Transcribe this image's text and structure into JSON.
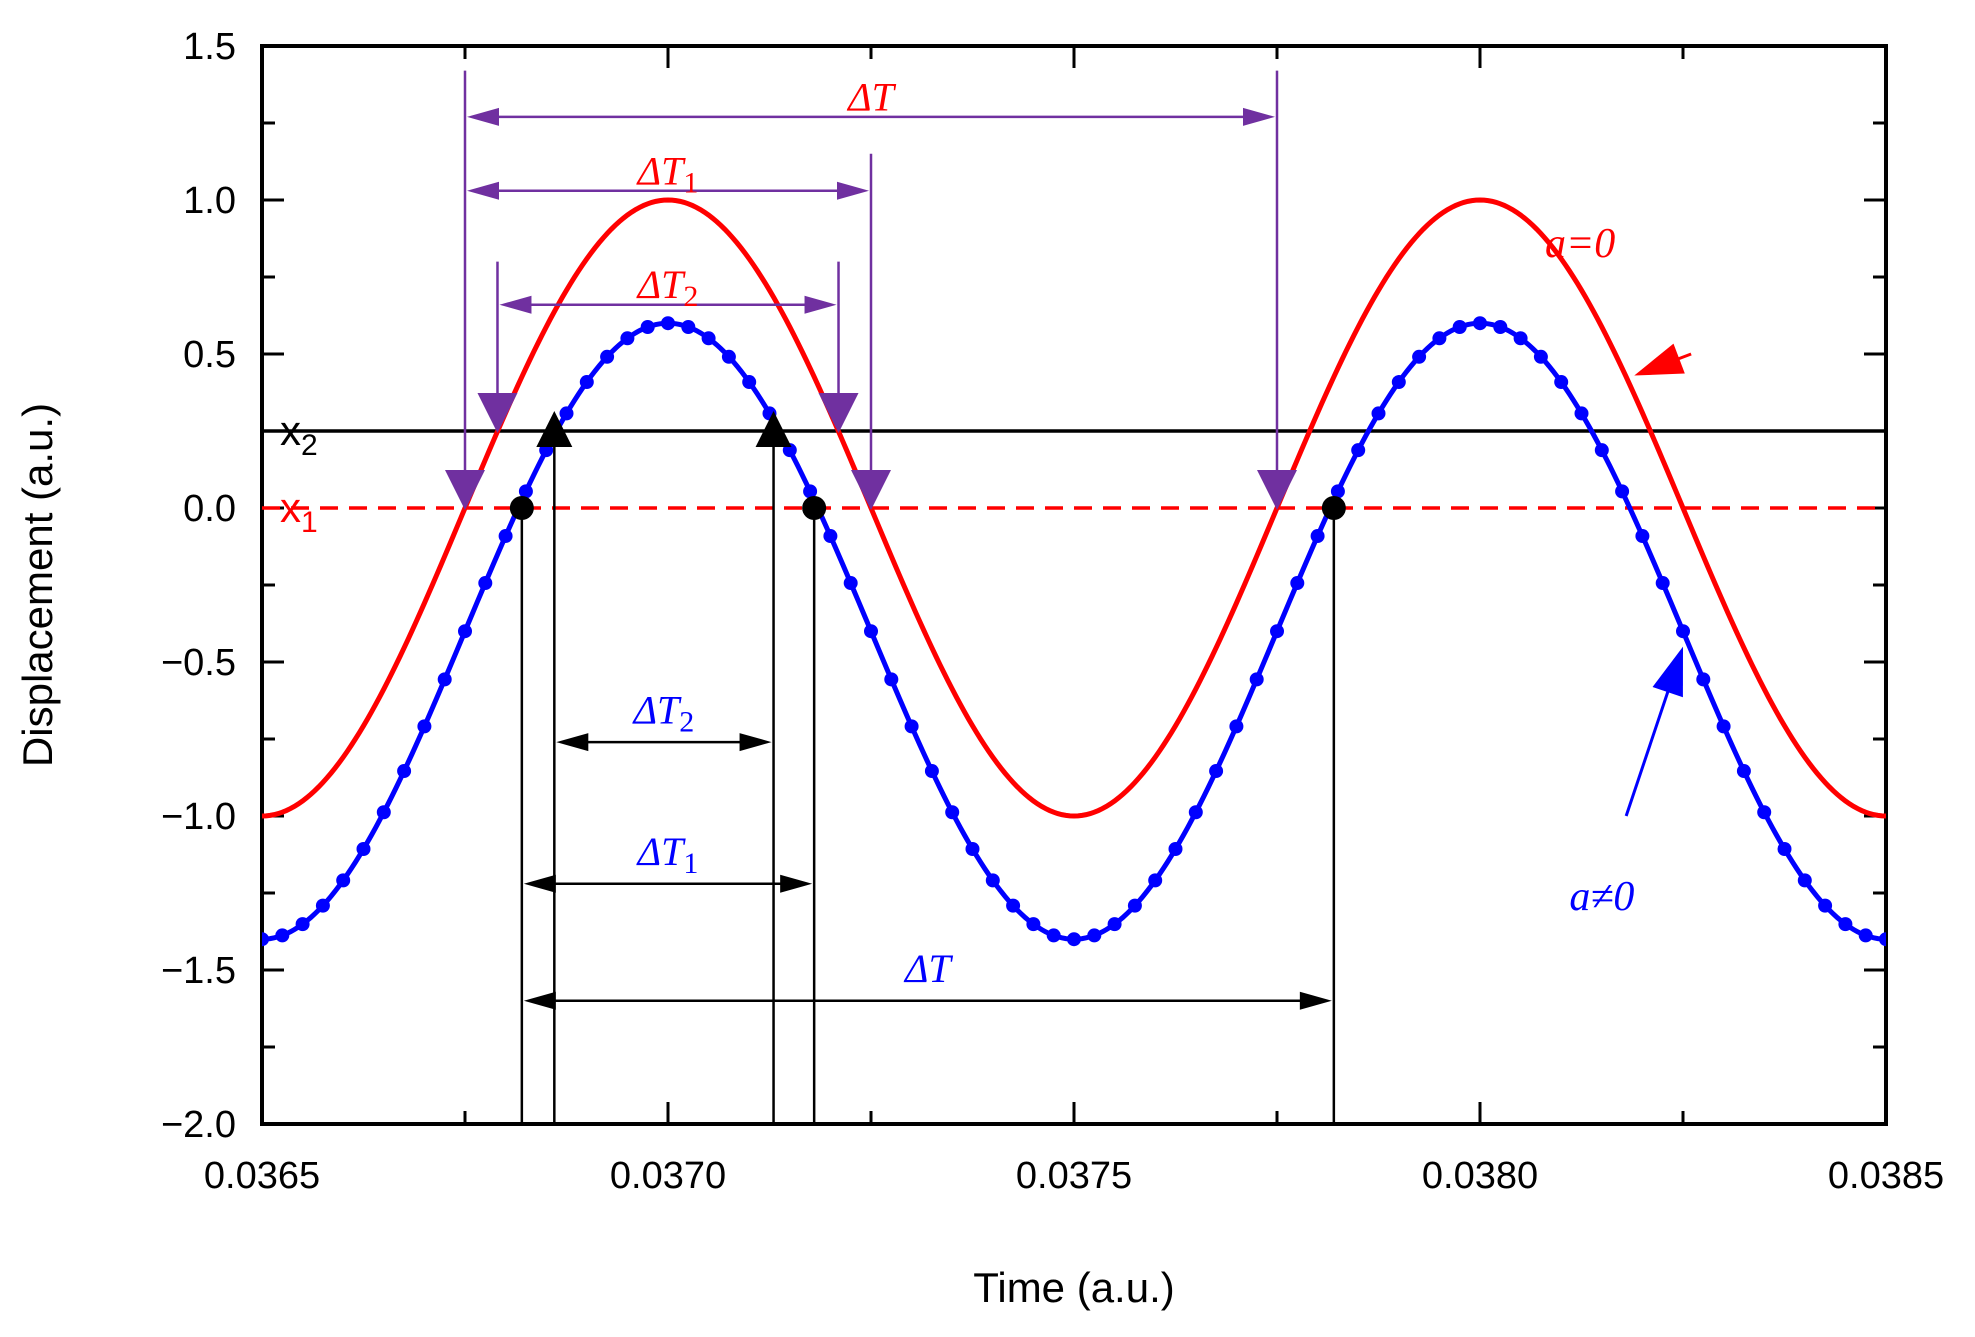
{
  "chart_data": {
    "type": "line",
    "xlabel": "Time (a.u.)",
    "ylabel": "Displacement (a.u.)",
    "xlim": [
      0.0365,
      0.0385
    ],
    "ylim": [
      -2.0,
      1.5
    ],
    "x_ticks": [
      "0.0365",
      "0.0370",
      "0.0375",
      "0.0380",
      "0.0385"
    ],
    "x_tick_values": [
      0.0365,
      0.037,
      0.0375,
      0.038,
      0.0385
    ],
    "y_ticks": [
      "1.5",
      "1.0",
      "0.5",
      "0.0",
      "−0.5",
      "−1.0",
      "−1.5",
      "−2.0"
    ],
    "y_tick_values": [
      1.5,
      1.0,
      0.5,
      0.0,
      -0.5,
      -1.0,
      -1.5,
      -2.0
    ],
    "series": [
      {
        "name": "a=0",
        "label": "a=0",
        "color": "#ff0000",
        "formula": "y = sin(2*pi*(t - 0.03675)/0.001)",
        "x_range": [
          0.0365,
          0.0385
        ],
        "points": [
          [
            0.0365,
            -1.0
          ],
          [
            0.03675,
            0.0
          ],
          [
            0.037,
            1.0
          ],
          [
            0.03725,
            0.0
          ],
          [
            0.0375,
            -1.0
          ],
          [
            0.03775,
            0.0
          ],
          [
            0.038,
            1.0
          ],
          [
            0.03825,
            0.0
          ],
          [
            0.0385,
            -1.0
          ]
        ]
      },
      {
        "name": "a≠0",
        "label": "a≠0",
        "color": "#0000ff",
        "formula": "y = -0.4 + sin(2*pi*(t - 0.03675)/0.001)",
        "x_range": [
          0.0365,
          0.0385
        ],
        "marker_count": 81,
        "points": [
          [
            0.0365,
            -1.4
          ],
          [
            0.03675,
            -0.4
          ],
          [
            0.037,
            0.6
          ],
          [
            0.03725,
            -0.4
          ],
          [
            0.0375,
            -1.4
          ],
          [
            0.03775,
            -0.4
          ],
          [
            0.038,
            0.6
          ],
          [
            0.03825,
            -0.4
          ],
          [
            0.0385,
            -1.4
          ]
        ]
      }
    ],
    "threshold_lines": [
      {
        "name": "x2",
        "base": "x",
        "sub": "2",
        "y": 0.25,
        "color": "#000000",
        "style": "solid"
      },
      {
        "name": "x1",
        "base": "x",
        "sub": "1",
        "y": 0.0,
        "color": "#ff0000",
        "style": "dashed"
      }
    ],
    "crossing_markers": [
      {
        "name": "red-curve-x1-up",
        "x": 0.03675,
        "y": 0.0,
        "marker": "triangle-down",
        "color": "#7030a0"
      },
      {
        "name": "red-curve-x2-up",
        "x": 0.03679,
        "y": 0.25,
        "marker": "triangle-down",
        "color": "#7030a0"
      },
      {
        "name": "red-curve-x2-down",
        "x": 0.03721,
        "y": 0.25,
        "marker": "triangle-down",
        "color": "#7030a0"
      },
      {
        "name": "red-curve-x1-down",
        "x": 0.03725,
        "y": 0.0,
        "marker": "triangle-down",
        "color": "#7030a0"
      },
      {
        "name": "red-curve-x1-up-next",
        "x": 0.03775,
        "y": 0.0,
        "marker": "triangle-down",
        "color": "#7030a0"
      },
      {
        "name": "blue-curve-x1-up",
        "x": 0.03682,
        "y": 0.0,
        "marker": "circle",
        "color": "#000000"
      },
      {
        "name": "blue-curve-x2-up",
        "x": 0.03686,
        "y": 0.25,
        "marker": "triangle-up",
        "color": "#000000"
      },
      {
        "name": "blue-curve-x2-down",
        "x": 0.03713,
        "y": 0.25,
        "marker": "triangle-up",
        "color": "#000000"
      },
      {
        "name": "blue-curve-x1-down",
        "x": 0.03718,
        "y": 0.0,
        "marker": "circle",
        "color": "#000000"
      },
      {
        "name": "blue-curve-x1-up-next",
        "x": 0.03782,
        "y": 0.0,
        "marker": "circle",
        "color": "#000000"
      }
    ],
    "annotations": [
      {
        "name": "red-delta-T",
        "base": "ΔT",
        "sub": "",
        "color": "#ff0000",
        "arrow_color": "#7030a0",
        "x_start": 0.03675,
        "x_end": 0.03775,
        "y": 1.27,
        "label_y": 1.33
      },
      {
        "name": "red-delta-T1",
        "base": "ΔT",
        "sub": "1",
        "color": "#ff0000",
        "arrow_color": "#7030a0",
        "x_start": 0.03675,
        "x_end": 0.03725,
        "y": 1.03,
        "label_y": 1.09
      },
      {
        "name": "red-delta-T2",
        "base": "ΔT",
        "sub": "2",
        "color": "#ff0000",
        "arrow_color": "#7030a0",
        "x_start": 0.03679,
        "x_end": 0.03721,
        "y": 0.66,
        "label_y": 0.72
      },
      {
        "name": "blue-delta-T2",
        "base": "ΔT",
        "sub": "2",
        "color": "#0000ff",
        "arrow_color": "#000000",
        "x_start": 0.03686,
        "x_end": 0.03713,
        "y": -0.76,
        "label_y": -0.66
      },
      {
        "name": "blue-delta-T1",
        "base": "ΔT",
        "sub": "1",
        "color": "#0000ff",
        "arrow_color": "#000000",
        "x_start": 0.03682,
        "x_end": 0.03718,
        "y": -1.22,
        "label_y": -1.12
      },
      {
        "name": "blue-delta-T",
        "base": "ΔT",
        "sub": "",
        "color": "#0000ff",
        "arrow_color": "#000000",
        "x_start": 0.03682,
        "x_end": 0.03782,
        "y": -1.6,
        "label_y": -1.5
      }
    ],
    "curve_labels": [
      {
        "name": "label-a-eq-0",
        "text": "a=0",
        "color": "#ff0000",
        "x": 0.03808,
        "y": 0.86,
        "arrow_tip": [
          0.03819,
          0.43
        ],
        "arrow_tail": [
          0.03826,
          0.5
        ]
      },
      {
        "name": "label-a-neq-0",
        "text": "a≠0",
        "color": "#0000ff",
        "x": 0.03811,
        "y": -1.26,
        "arrow_tip": [
          0.03825,
          -0.45
        ],
        "arrow_tail": [
          0.03818,
          -1.0
        ]
      }
    ]
  }
}
